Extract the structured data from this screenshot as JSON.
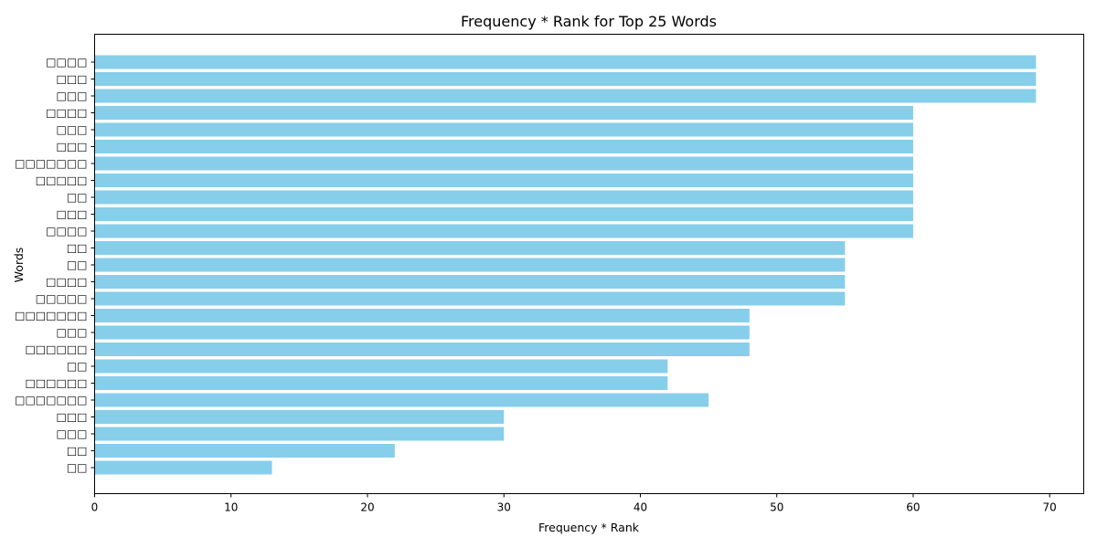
{
  "chart_data": {
    "type": "bar",
    "orientation": "horizontal",
    "title": "Frequency * Rank for Top 25 Words",
    "xlabel": "Frequency * Rank",
    "ylabel": "Words",
    "xlim": [
      0,
      72.5
    ],
    "xticks": [
      0,
      10,
      20,
      30,
      40,
      50,
      60,
      70
    ],
    "bar_color": "#87ceeb",
    "grid": false,
    "categories": [
      "□□□□",
      "□□□",
      "□□□",
      "□□□□",
      "□□□",
      "□□□",
      "□□□□□□□",
      "□□□□□",
      "□□",
      "□□□",
      "□□□□",
      "□□",
      "□□",
      "□□□□",
      "□□□□□",
      "□□□□□□□",
      "□□□",
      "□□□□□□",
      "□□",
      "□□□□□□",
      "□□□□□□□",
      "□□□",
      "□□□",
      "□□",
      "□□"
    ],
    "values": [
      69,
      69,
      69,
      60,
      60,
      60,
      60,
      60,
      60,
      60,
      60,
      55,
      55,
      55,
      55,
      48,
      48,
      48,
      42,
      42,
      45,
      30,
      30,
      22,
      13
    ]
  }
}
